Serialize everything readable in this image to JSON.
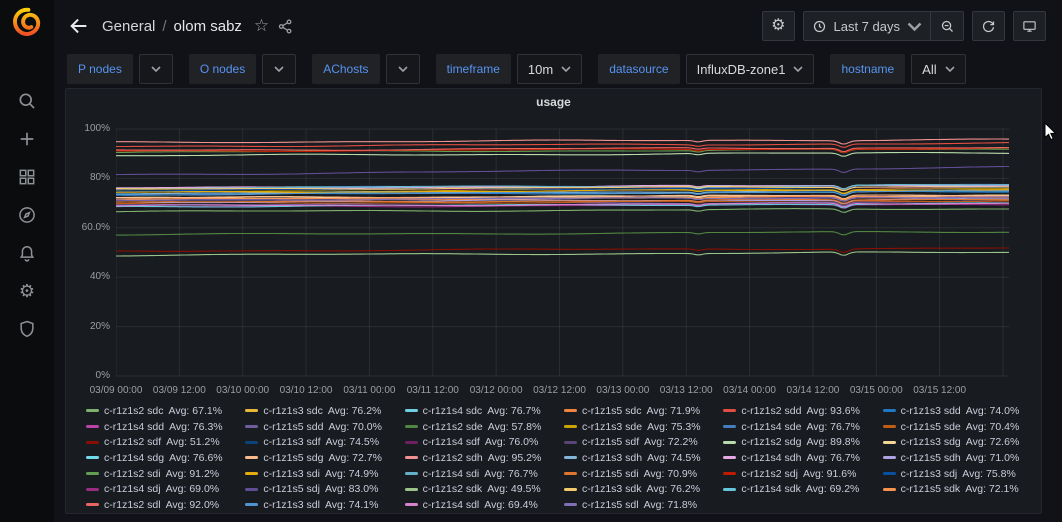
{
  "sidebar": {
    "icons": [
      "grafana-logo",
      "search",
      "plus",
      "dashboards",
      "explore",
      "alerting",
      "configuration",
      "server-admin"
    ]
  },
  "header": {
    "folder": "General",
    "separator": "/",
    "title": "olom sabz",
    "icons": [
      "arrow-left",
      "star",
      "share-alt",
      "panel-settings",
      "clock",
      "zoom-out",
      "refresh",
      "cycle-view"
    ],
    "time_range": "Last 7 days"
  },
  "filters": [
    {
      "label": "P nodes",
      "value": null
    },
    {
      "label": "O nodes",
      "value": null
    },
    {
      "label": "AChosts",
      "value": null
    },
    {
      "label": "timeframe",
      "value": "10m"
    },
    {
      "label": "datasource",
      "value": "InfluxDB-zone1"
    },
    {
      "label": "hostname",
      "value": "All"
    }
  ],
  "panel": {
    "title": "usage"
  },
  "chart_data": {
    "type": "line",
    "title": "usage",
    "ylabel": "",
    "xlabel": "",
    "ylim": [
      0,
      100
    ],
    "grid": true,
    "legend_position": "bottom",
    "avg_prefix": "Avg:",
    "y_ticks": [
      "100%",
      "80%",
      "60.0%",
      "40%",
      "20%",
      "0%"
    ],
    "y_tick_values": [
      100,
      80,
      60,
      40,
      20,
      0
    ],
    "x_ticks": [
      "03/09 00:00",
      "03/09 12:00",
      "03/10 00:00",
      "03/10 12:00",
      "03/11 00:00",
      "03/11 12:00",
      "03/12 00:00",
      "03/12 12:00",
      "03/13 00:00",
      "03/13 12:00",
      "03/14 00:00",
      "03/14 12:00",
      "03/15 00:00",
      "03/15 12:00"
    ],
    "series": [
      {
        "name": "c-r1z1s2 sdc",
        "avg": 67.1,
        "color": "#7EB26D"
      },
      {
        "name": "c-r1z1s3 sdc",
        "avg": 76.2,
        "color": "#EAB839"
      },
      {
        "name": "c-r1z1s4 sdc",
        "avg": 76.7,
        "color": "#6ED0E0"
      },
      {
        "name": "c-r1z1s5 sdc",
        "avg": 71.9,
        "color": "#EF843C"
      },
      {
        "name": "c-r1z1s2 sdd",
        "avg": 93.6,
        "color": "#E24D42"
      },
      {
        "name": "c-r1z1s3 sdd",
        "avg": 74.0,
        "color": "#1F78C1"
      },
      {
        "name": "c-r1z1s4 sdd",
        "avg": 76.3,
        "color": "#BA43A9"
      },
      {
        "name": "c-r1z1s5 sdd",
        "avg": 70.0,
        "color": "#705DA0"
      },
      {
        "name": "c-r1z1s2 sde",
        "avg": 57.8,
        "color": "#508642"
      },
      {
        "name": "c-r1z1s3 sde",
        "avg": 75.3,
        "color": "#CCA300"
      },
      {
        "name": "c-r1z1s4 sde",
        "avg": 76.7,
        "color": "#447EBC"
      },
      {
        "name": "c-r1z1s5 sde",
        "avg": 70.4,
        "color": "#C15C17"
      },
      {
        "name": "c-r1z1s2 sdf",
        "avg": 51.2,
        "color": "#890F02"
      },
      {
        "name": "c-r1z1s3 sdf",
        "avg": 74.5,
        "color": "#0A437C"
      },
      {
        "name": "c-r1z1s4 sdf",
        "avg": 76.0,
        "color": "#6D1F62"
      },
      {
        "name": "c-r1z1s5 sdf",
        "avg": 72.2,
        "color": "#584477"
      },
      {
        "name": "c-r1z1s2 sdg",
        "avg": 89.8,
        "color": "#B7DBAB"
      },
      {
        "name": "c-r1z1s3 sdg",
        "avg": 72.6,
        "color": "#F4D598"
      },
      {
        "name": "c-r1z1s4 sdg",
        "avg": 76.6,
        "color": "#70DBED"
      },
      {
        "name": "c-r1z1s5 sdg",
        "avg": 72.7,
        "color": "#F9BA8F"
      },
      {
        "name": "c-r1z1s2 sdh",
        "avg": 95.2,
        "color": "#F29191"
      },
      {
        "name": "c-r1z1s3 sdh",
        "avg": 74.5,
        "color": "#82B5D8"
      },
      {
        "name": "c-r1z1s4 sdh",
        "avg": 76.7,
        "color": "#E5A8E2"
      },
      {
        "name": "c-r1z1s5 sdh",
        "avg": 71.0,
        "color": "#AEA2E0"
      },
      {
        "name": "c-r1z1s2 sdi",
        "avg": 91.2,
        "color": "#629E51"
      },
      {
        "name": "c-r1z1s3 sdi",
        "avg": 74.9,
        "color": "#E5AC0E"
      },
      {
        "name": "c-r1z1s4 sdi",
        "avg": 76.7,
        "color": "#64B0C8"
      },
      {
        "name": "c-r1z1s5 sdi",
        "avg": 70.9,
        "color": "#E0752D"
      },
      {
        "name": "c-r1z1s2 sdj",
        "avg": 91.6,
        "color": "#BF1B00"
      },
      {
        "name": "c-r1z1s3 sdj",
        "avg": 75.8,
        "color": "#0A50A1"
      },
      {
        "name": "c-r1z1s4 sdj",
        "avg": 69.0,
        "color": "#962D82"
      },
      {
        "name": "c-r1z1s5 sdj",
        "avg": 83.0,
        "color": "#614D93",
        "trend": 3
      },
      {
        "name": "c-r1z1s2 sdk",
        "avg": 49.5,
        "color": "#9AC48A"
      },
      {
        "name": "c-r1z1s3 sdk",
        "avg": 76.2,
        "color": "#F2C96D"
      },
      {
        "name": "c-r1z1s4 sdk",
        "avg": 69.2,
        "color": "#65C5DB"
      },
      {
        "name": "c-r1z1s5 sdk",
        "avg": 72.1,
        "color": "#F9934E"
      },
      {
        "name": "c-r1z1s2 sdl",
        "avg": 92.0,
        "color": "#EA6460"
      },
      {
        "name": "c-r1z1s3 sdl",
        "avg": 74.1,
        "color": "#5195CE"
      },
      {
        "name": "c-r1z1s4 sdl",
        "avg": 69.4,
        "color": "#D683CE"
      },
      {
        "name": "c-r1z1s5 sdl",
        "avg": 71.8,
        "color": "#806EB7"
      }
    ]
  }
}
